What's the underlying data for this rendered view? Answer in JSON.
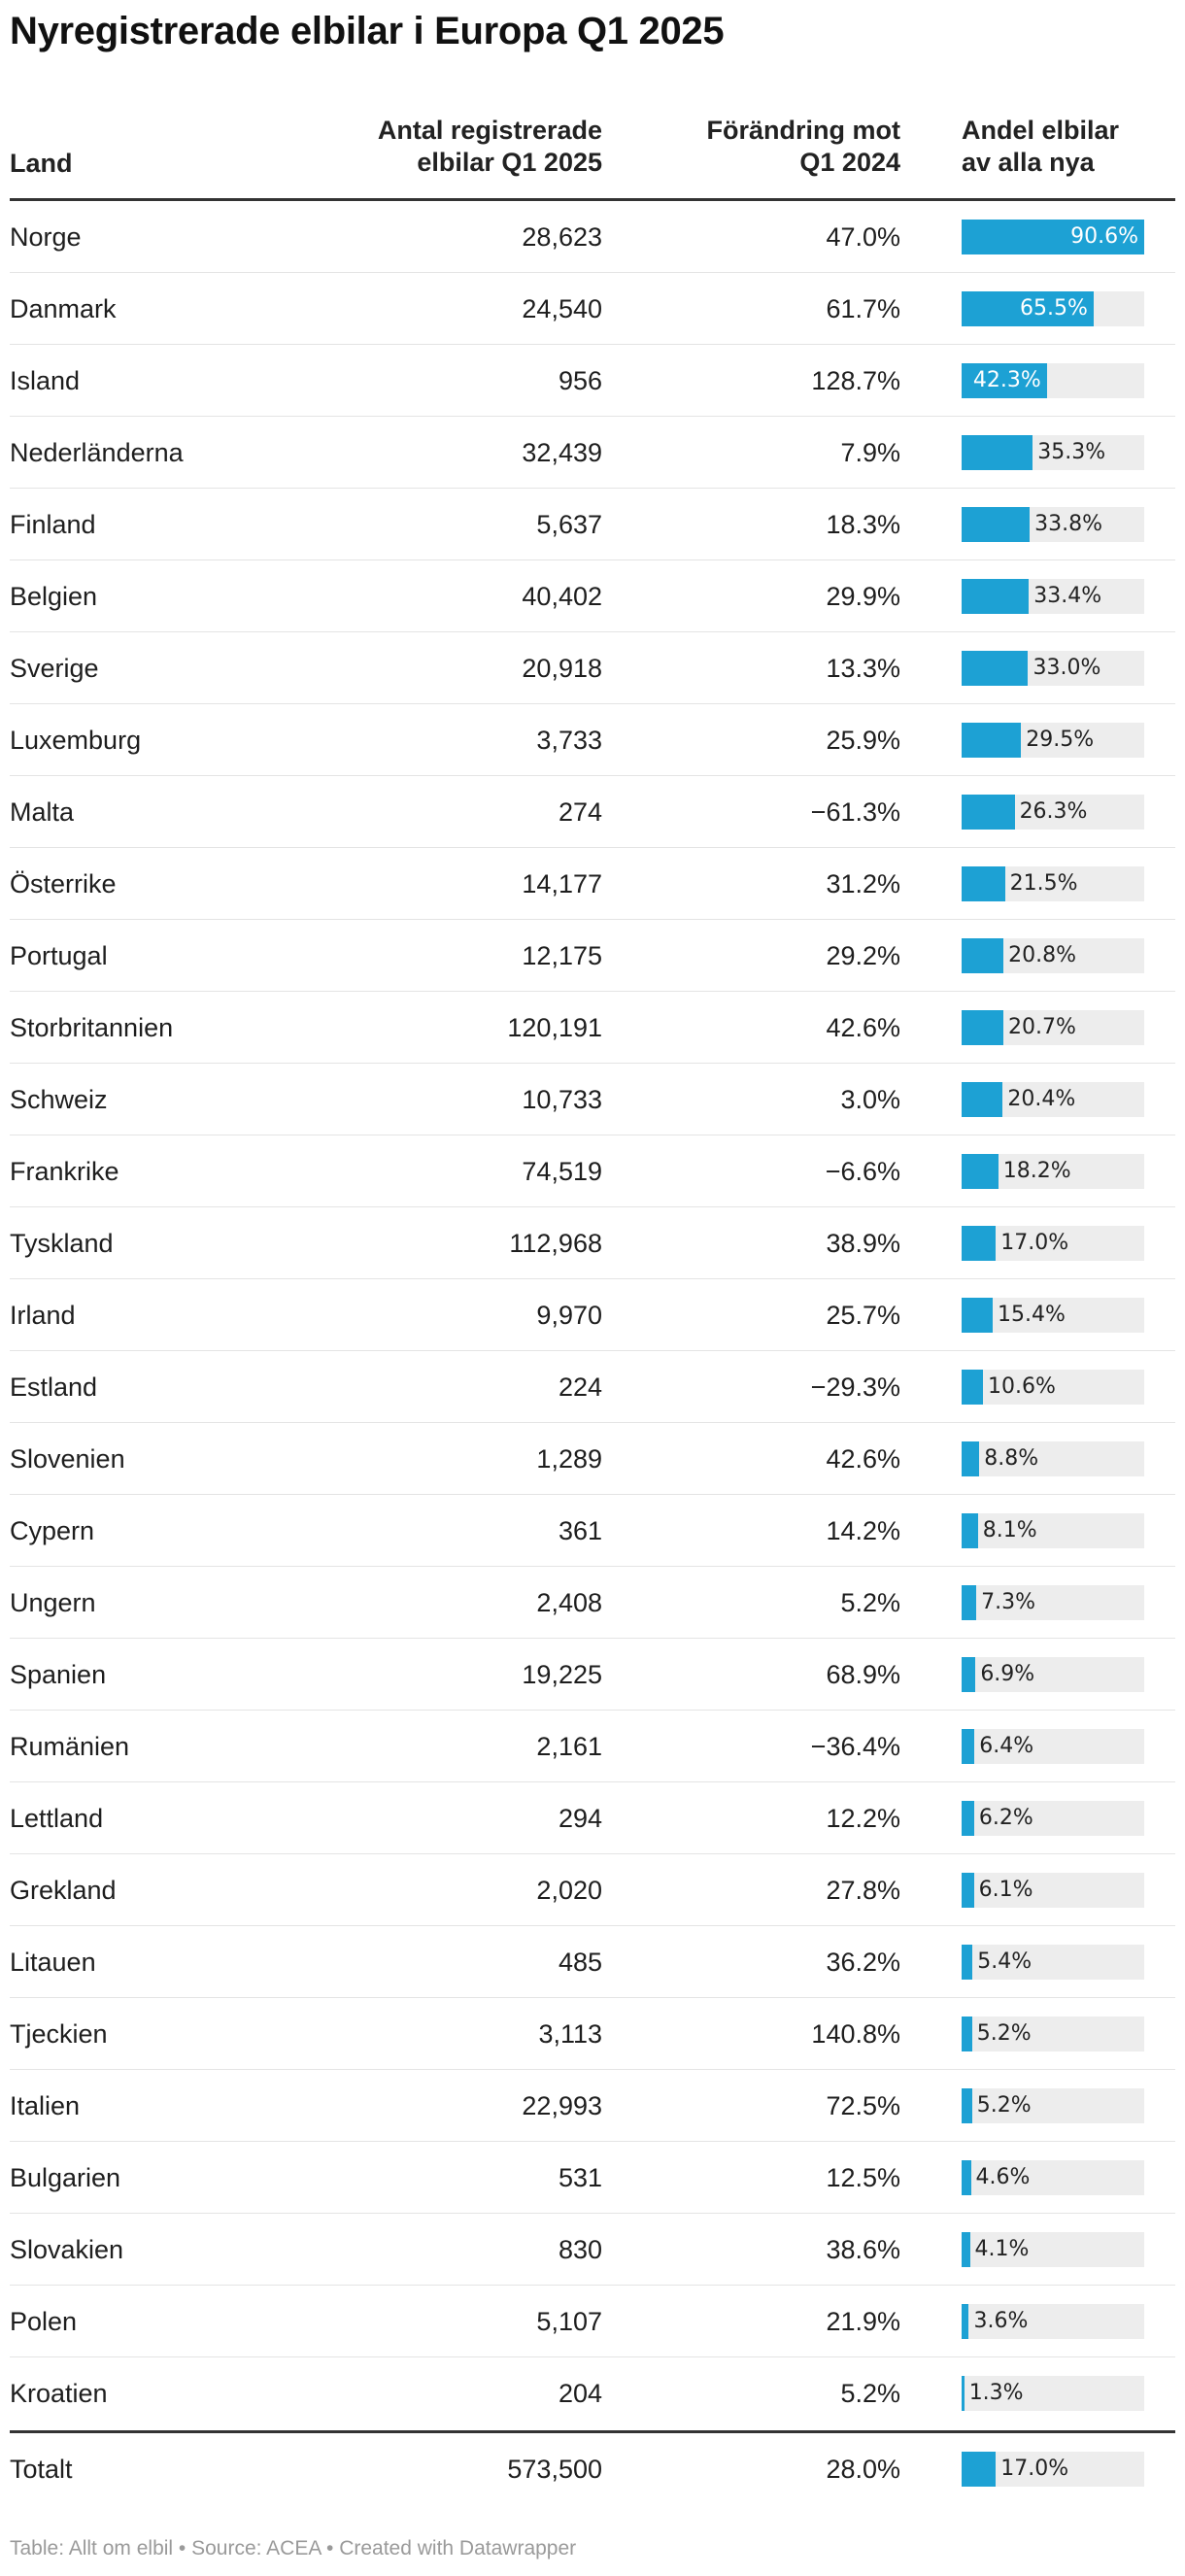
{
  "chart_data": {
    "type": "table",
    "title": "Nyregistrerade elbilar i Europa Q1 2025",
    "columns": {
      "land": "Land",
      "antal_line1": "Antal registrerade",
      "antal_line2": "elbilar Q1 2025",
      "forand_line1": "Förändring mot",
      "forand_line2": "Q1 2024",
      "andel_line1": "Andel elbilar",
      "andel_line2": "av alla nya"
    },
    "bar_max": 90.6,
    "rows": [
      {
        "land": "Norge",
        "antal": "28,623",
        "forandring": "47.0%",
        "andel": 90.6,
        "andel_label": "90.6%"
      },
      {
        "land": "Danmark",
        "antal": "24,540",
        "forandring": "61.7%",
        "andel": 65.5,
        "andel_label": "65.5%"
      },
      {
        "land": "Island",
        "antal": "956",
        "forandring": "128.7%",
        "andel": 42.3,
        "andel_label": "42.3%"
      },
      {
        "land": "Nederländerna",
        "antal": "32,439",
        "forandring": "7.9%",
        "andel": 35.3,
        "andel_label": "35.3%"
      },
      {
        "land": "Finland",
        "antal": "5,637",
        "forandring": "18.3%",
        "andel": 33.8,
        "andel_label": "33.8%"
      },
      {
        "land": "Belgien",
        "antal": "40,402",
        "forandring": "29.9%",
        "andel": 33.4,
        "andel_label": "33.4%"
      },
      {
        "land": "Sverige",
        "antal": "20,918",
        "forandring": "13.3%",
        "andel": 33.0,
        "andel_label": "33.0%"
      },
      {
        "land": "Luxemburg",
        "antal": "3,733",
        "forandring": "25.9%",
        "andel": 29.5,
        "andel_label": "29.5%"
      },
      {
        "land": "Malta",
        "antal": "274",
        "forandring": "−61.3%",
        "andel": 26.3,
        "andel_label": "26.3%"
      },
      {
        "land": "Österrike",
        "antal": "14,177",
        "forandring": "31.2%",
        "andel": 21.5,
        "andel_label": "21.5%"
      },
      {
        "land": "Portugal",
        "antal": "12,175",
        "forandring": "29.2%",
        "andel": 20.8,
        "andel_label": "20.8%"
      },
      {
        "land": "Storbritannien",
        "antal": "120,191",
        "forandring": "42.6%",
        "andel": 20.7,
        "andel_label": "20.7%"
      },
      {
        "land": "Schweiz",
        "antal": "10,733",
        "forandring": "3.0%",
        "andel": 20.4,
        "andel_label": "20.4%"
      },
      {
        "land": "Frankrike",
        "antal": "74,519",
        "forandring": "−6.6%",
        "andel": 18.2,
        "andel_label": "18.2%"
      },
      {
        "land": "Tyskland",
        "antal": "112,968",
        "forandring": "38.9%",
        "andel": 17.0,
        "andel_label": "17.0%"
      },
      {
        "land": "Irland",
        "antal": "9,970",
        "forandring": "25.7%",
        "andel": 15.4,
        "andel_label": "15.4%"
      },
      {
        "land": "Estland",
        "antal": "224",
        "forandring": "−29.3%",
        "andel": 10.6,
        "andel_label": "10.6%"
      },
      {
        "land": "Slovenien",
        "antal": "1,289",
        "forandring": "42.6%",
        "andel": 8.8,
        "andel_label": "8.8%"
      },
      {
        "land": "Cypern",
        "antal": "361",
        "forandring": "14.2%",
        "andel": 8.1,
        "andel_label": "8.1%"
      },
      {
        "land": "Ungern",
        "antal": "2,408",
        "forandring": "5.2%",
        "andel": 7.3,
        "andel_label": "7.3%"
      },
      {
        "land": "Spanien",
        "antal": "19,225",
        "forandring": "68.9%",
        "andel": 6.9,
        "andel_label": "6.9%"
      },
      {
        "land": "Rumänien",
        "antal": "2,161",
        "forandring": "−36.4%",
        "andel": 6.4,
        "andel_label": "6.4%"
      },
      {
        "land": "Lettland",
        "antal": "294",
        "forandring": "12.2%",
        "andel": 6.2,
        "andel_label": "6.2%"
      },
      {
        "land": "Grekland",
        "antal": "2,020",
        "forandring": "27.8%",
        "andel": 6.1,
        "andel_label": "6.1%"
      },
      {
        "land": "Litauen",
        "antal": "485",
        "forandring": "36.2%",
        "andel": 5.4,
        "andel_label": "5.4%"
      },
      {
        "land": "Tjeckien",
        "antal": "3,113",
        "forandring": "140.8%",
        "andel": 5.2,
        "andel_label": "5.2%"
      },
      {
        "land": "Italien",
        "antal": "22,993",
        "forandring": "72.5%",
        "andel": 5.2,
        "andel_label": "5.2%"
      },
      {
        "land": "Bulgarien",
        "antal": "531",
        "forandring": "12.5%",
        "andel": 4.6,
        "andel_label": "4.6%"
      },
      {
        "land": "Slovakien",
        "antal": "830",
        "forandring": "38.6%",
        "andel": 4.1,
        "andel_label": "4.1%"
      },
      {
        "land": "Polen",
        "antal": "5,107",
        "forandring": "21.9%",
        "andel": 3.6,
        "andel_label": "3.6%"
      },
      {
        "land": "Kroatien",
        "antal": "204",
        "forandring": "5.2%",
        "andel": 1.3,
        "andel_label": "1.3%"
      }
    ],
    "total": {
      "land": "Totalt",
      "antal": "573,500",
      "forandring": "28.0%",
      "andel": 17.0,
      "andel_label": "17.0%"
    },
    "colors": {
      "bar": "#1da1d4",
      "bar_bg": "#ededed"
    }
  },
  "footer": "Table: Allt om elbil • Source: ACEA • Created with Datawrapper"
}
